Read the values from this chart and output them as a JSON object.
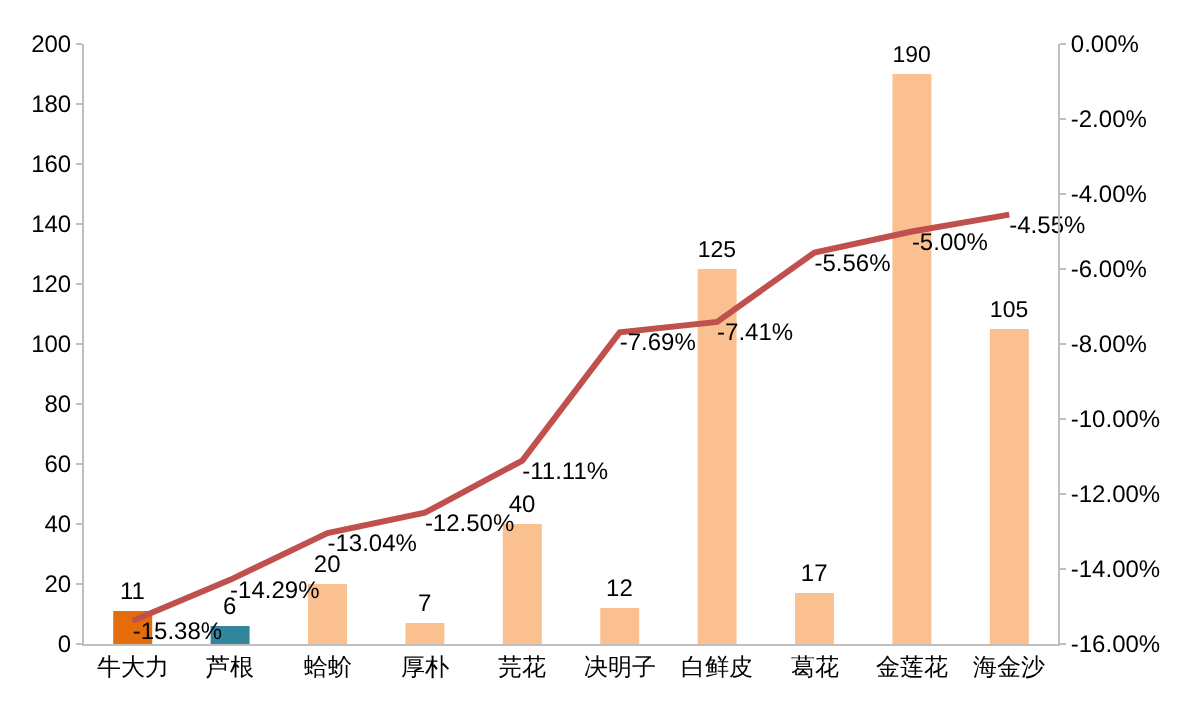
{
  "chart_data": {
    "type": "bar",
    "categories": [
      "牛大力",
      "芦根",
      "蛤蚧",
      "厚朴",
      "芫花",
      "决明子",
      "白鲜皮",
      "葛花",
      "金莲花",
      "海金沙"
    ],
    "series": [
      {
        "colors": [
          "#e46c0a",
          "#31859c",
          "#fac090",
          "#fac090",
          "#fac090",
          "#fac090",
          "#fac090",
          "#fac090",
          "#fac090",
          "#fac090"
        ],
        "values": [
          11,
          6,
          20,
          7,
          40,
          12,
          125,
          17,
          190,
          105
        ],
        "data_labels": true
      },
      {
        "type": "line",
        "axis": "y2",
        "color": "#c0504d",
        "values": [
          -15.38,
          -14.29,
          -13.04,
          -12.5,
          -11.11,
          -7.69,
          -7.41,
          -5.56,
          -5.0,
          -4.55
        ],
        "value_labels": [
          "-15.38%",
          "-14.29%",
          "-13.04%",
          "-12.50%",
          "-11.11%",
          "-7.69%",
          "-7.41%",
          "-5.56%",
          "-5.00%",
          "-4.55%"
        ]
      }
    ],
    "ylim": [
      0,
      200
    ],
    "yticks": [
      0,
      20,
      40,
      60,
      80,
      100,
      120,
      140,
      160,
      180,
      200
    ],
    "y2lim": [
      -16,
      0
    ],
    "y2ticks": [
      {
        "value": -16,
        "label": "-16.00%"
      },
      {
        "value": -14,
        "label": "-14.00%"
      },
      {
        "value": -12,
        "label": "-12.00%"
      },
      {
        "value": -10,
        "label": "-10.00%"
      },
      {
        "value": -8,
        "label": "-8.00%"
      },
      {
        "value": -6,
        "label": "-6.00%"
      },
      {
        "value": -4,
        "label": "-4.00%"
      },
      {
        "value": -2,
        "label": "-2.00%"
      },
      {
        "value": 0,
        "label": "0.00%"
      }
    ],
    "grid": false,
    "legend": false,
    "marker": "none",
    "line_style": "solid"
  }
}
